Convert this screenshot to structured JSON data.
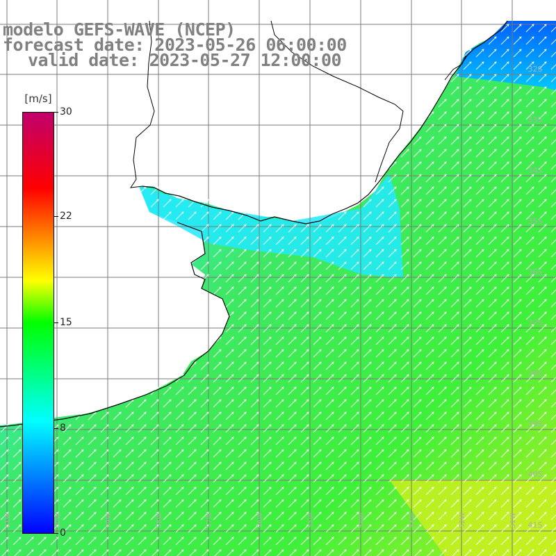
{
  "title": {
    "model": "modelo GEFS-WAVE (NCEP)",
    "forecast": "forecast date: 2023-05-26 06:00:00",
    "valid": "valid date: 2023-05-27 12:00:00"
  },
  "colorbar": {
    "unit": "[m/s]",
    "ticks": [
      "30",
      "22",
      "15",
      "8",
      "0"
    ],
    "min": 0,
    "max": 30,
    "colors": [
      "#0000ff",
      "#00ffff",
      "#00ff00",
      "#ffff00",
      "#ff0000",
      "#c0006c"
    ]
  },
  "map": {
    "lat_labels": [
      "32S",
      "33S",
      "34S",
      "35S",
      "36S",
      "37S",
      "38S",
      "39S",
      "40S",
      "41S"
    ],
    "lon_labels": [
      "61W",
      "60W",
      "59W",
      "58W",
      "57W",
      "56W",
      "55W",
      "54W",
      "53W",
      "52W",
      "51W"
    ],
    "land_color": "#ffffff",
    "grid_color": "#808080",
    "coast_color": "#000000",
    "arrow_color": "#ffffff",
    "wind_direction": "from southwest"
  }
}
